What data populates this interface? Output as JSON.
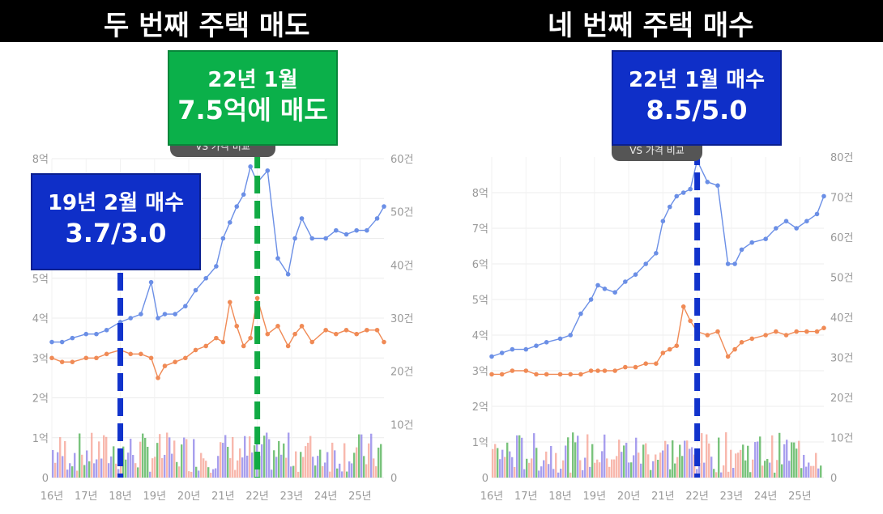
{
  "header": {
    "left_title": "두 번째 주택 매도",
    "right_title": "네 번째 주택 매수"
  },
  "colors": {
    "price_line": "#6b8fe6",
    "jeonse_line": "#f08a55",
    "vline_blue": "#1133cc",
    "vline_green": "#11aa44",
    "callout_blue": "#0f2fc8",
    "callout_green": "#0bb04a",
    "bar_pink": "#f5a091",
    "bar_purple": "#8b7fe8",
    "bar_green": "#4caf50"
  },
  "left": {
    "tag_text": "VS 가격 비교",
    "callout_sell": {
      "line1": "22년 1월",
      "line2": "7.5억에 매도"
    },
    "callout_buy": {
      "line1": "19년 2월 매수",
      "line2": "3.7/3.0"
    }
  },
  "right": {
    "tag_text": "VS 가격 비교",
    "callout_buy": {
      "line1": "22년 1월 매수",
      "line2": "8.5/5.0"
    }
  },
  "chart_data": [
    {
      "type": "line",
      "x_labels": [
        "16년",
        "17년",
        "18년",
        "19년",
        "20년",
        "21년",
        "22년",
        "23년",
        "24년",
        "25년"
      ],
      "y_left": {
        "ticks": [
          "0",
          "1억",
          "2억",
          "3억",
          "4억",
          "5억",
          "6억",
          "7억",
          "8억"
        ],
        "ylim": [
          0,
          8
        ]
      },
      "y_right": {
        "ticks": [
          "0",
          "10건",
          "20건",
          "30건",
          "40건",
          "50건",
          "60건"
        ],
        "ylim": [
          0,
          60
        ]
      },
      "grid": true,
      "series": [
        {
          "x": [
            16.0,
            16.3,
            16.6,
            17.0,
            17.3,
            17.6,
            18.0,
            18.3,
            18.6,
            18.9,
            19.1,
            19.3,
            19.6,
            19.9,
            20.2,
            20.5,
            20.8,
            21.0,
            21.2,
            21.4,
            21.6,
            21.8,
            22.0,
            22.3,
            22.6,
            22.9,
            23.1,
            23.3,
            23.6,
            24.0,
            24.3,
            24.6,
            24.9,
            25.2,
            25.5,
            25.7
          ],
          "values": [
            3.4,
            3.4,
            3.5,
            3.6,
            3.6,
            3.7,
            3.9,
            4.0,
            4.1,
            4.9,
            4.0,
            4.1,
            4.1,
            4.3,
            4.7,
            5.0,
            5.3,
            6.0,
            6.4,
            6.8,
            7.1,
            7.8,
            7.4,
            7.7,
            5.5,
            5.1,
            6.0,
            6.5,
            6.0,
            6.0,
            6.2,
            6.1,
            6.2,
            6.2,
            6.5,
            6.8
          ]
        },
        {
          "x": [
            16.0,
            16.3,
            16.6,
            17.0,
            17.3,
            17.6,
            18.0,
            18.3,
            18.6,
            18.9,
            19.1,
            19.3,
            19.6,
            19.9,
            20.2,
            20.5,
            20.8,
            21.0,
            21.2,
            21.4,
            21.6,
            21.8,
            22.0,
            22.3,
            22.6,
            22.9,
            23.1,
            23.3,
            23.6,
            24.0,
            24.3,
            24.6,
            24.9,
            25.2,
            25.5,
            25.7
          ],
          "values": [
            3.0,
            2.9,
            2.9,
            3.0,
            3.0,
            3.1,
            3.2,
            3.1,
            3.1,
            3.0,
            2.5,
            2.8,
            2.9,
            3.0,
            3.2,
            3.3,
            3.5,
            3.4,
            4.4,
            3.8,
            3.3,
            3.5,
            4.5,
            3.6,
            3.8,
            3.3,
            3.6,
            3.8,
            3.4,
            3.7,
            3.6,
            3.7,
            3.6,
            3.7,
            3.7,
            3.4
          ]
        }
      ],
      "annotations": [
        "22년 1월 7.5억에 매도",
        "19년 2월 매수 3.7/3.0"
      ]
    },
    {
      "type": "line",
      "x_labels": [
        "16년",
        "17년",
        "18년",
        "19년",
        "20년",
        "21년",
        "22년",
        "23년",
        "24년",
        "25년"
      ],
      "y_left": {
        "ticks": [
          "0",
          "1억",
          "2억",
          "3억",
          "4억",
          "5억",
          "6억",
          "7억",
          "8억"
        ],
        "ylim": [
          0,
          9
        ]
      },
      "y_right": {
        "ticks": [
          "0",
          "10건",
          "20건",
          "30건",
          "40건",
          "50건",
          "60건",
          "70건",
          "80건"
        ],
        "ylim": [
          0,
          80
        ]
      },
      "grid": true,
      "series": [
        {
          "x": [
            16.0,
            16.3,
            16.6,
            17.0,
            17.3,
            17.6,
            18.0,
            18.3,
            18.6,
            18.9,
            19.1,
            19.3,
            19.6,
            19.9,
            20.2,
            20.5,
            20.8,
            21.0,
            21.2,
            21.4,
            21.6,
            21.8,
            22.0,
            22.3,
            22.6,
            22.9,
            23.1,
            23.3,
            23.6,
            24.0,
            24.3,
            24.6,
            24.9,
            25.2,
            25.5,
            25.7
          ],
          "values": [
            3.4,
            3.5,
            3.6,
            3.6,
            3.7,
            3.8,
            3.9,
            4.0,
            4.6,
            5.0,
            5.4,
            5.3,
            5.2,
            5.5,
            5.7,
            6.0,
            6.3,
            7.2,
            7.6,
            7.9,
            8.0,
            8.1,
            8.9,
            8.3,
            8.2,
            6.0,
            6.0,
            6.4,
            6.6,
            6.7,
            7.0,
            7.2,
            7.0,
            7.2,
            7.4,
            7.9
          ]
        },
        {
          "x": [
            16.0,
            16.3,
            16.6,
            17.0,
            17.3,
            17.6,
            18.0,
            18.3,
            18.6,
            18.9,
            19.1,
            19.3,
            19.6,
            19.9,
            20.2,
            20.5,
            20.8,
            21.0,
            21.2,
            21.4,
            21.6,
            21.8,
            22.0,
            22.3,
            22.6,
            22.9,
            23.1,
            23.3,
            23.6,
            24.0,
            24.3,
            24.6,
            24.9,
            25.2,
            25.5,
            25.7
          ],
          "values": [
            2.9,
            2.9,
            3.0,
            3.0,
            2.9,
            2.9,
            2.9,
            2.9,
            2.9,
            3.0,
            3.0,
            3.0,
            3.0,
            3.1,
            3.1,
            3.2,
            3.2,
            3.5,
            3.6,
            3.7,
            4.8,
            4.4,
            4.1,
            4.0,
            4.1,
            3.4,
            3.6,
            3.8,
            3.9,
            4.0,
            4.1,
            4.0,
            4.1,
            4.1,
            4.1,
            4.2
          ]
        }
      ],
      "annotations": [
        "22년 1월 매수 8.5/5.0"
      ]
    }
  ]
}
